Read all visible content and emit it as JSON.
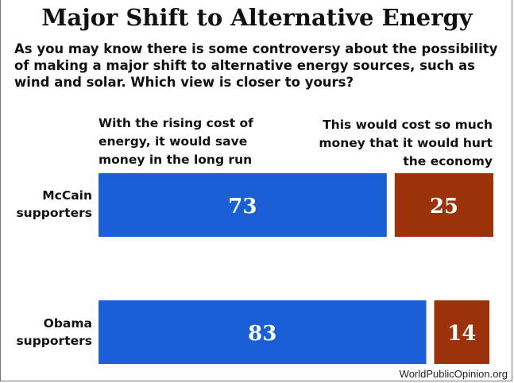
{
  "chart_data": {
    "type": "bar",
    "orientation": "horizontal",
    "stacked": true,
    "title": "Major Shift to Alternative Energy",
    "subtitle": "As you may know there is some controversy about the possibility of making a major shift to alternative energy sources, such as wind and solar. Which view is closer to yours?",
    "categories": [
      "McCain supporters",
      "Obama supporters"
    ],
    "series": [
      {
        "name": "With the rising cost of energy, it would save money in the long run",
        "values": [
          73,
          83
        ],
        "color": "#1a5fd6"
      },
      {
        "name": "This would cost so much money that it would hurt the economy",
        "values": [
          25,
          14
        ],
        "color": "#9b3209"
      }
    ],
    "xlim": [
      0,
      100
    ],
    "grid": false,
    "legend": "top"
  },
  "labels": {
    "head_a_lines": [
      "With the rising cost of",
      "energy, it would save",
      "money in the long run"
    ],
    "head_b_lines": [
      "This would cost so much",
      "money that it would hurt",
      "the economy"
    ],
    "row_lines": [
      [
        "McCain",
        "supporters"
      ],
      [
        "Obama",
        "supporters"
      ]
    ]
  },
  "footer": "WorldPublicOpinion.org"
}
